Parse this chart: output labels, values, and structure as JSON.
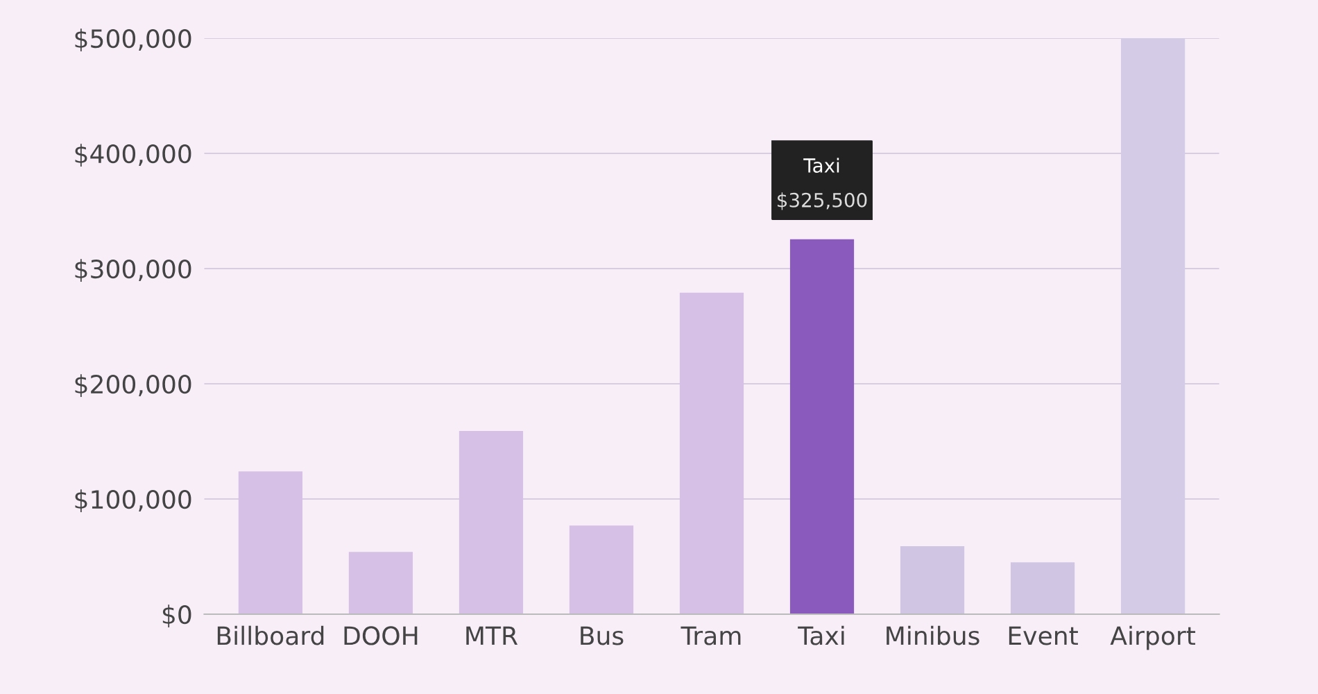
{
  "chart_data": {
    "type": "bar",
    "categories": [
      "Billboard",
      "DOOH",
      "MTR",
      "Bus",
      "Tram",
      "Taxi",
      "Minibus",
      "Event",
      "Airport"
    ],
    "values": [
      124000,
      54000,
      159000,
      77000,
      279000,
      325500,
      59000,
      45000,
      500000
    ],
    "colors": [
      "#d6c0e6",
      "#d6c0e6",
      "#d6c0e6",
      "#d6c0e6",
      "#d6c0e6",
      "#8a5abd",
      "#d0c6e4",
      "#d0c6e4",
      "#d4cbe6"
    ],
    "value_labels": [
      null,
      null,
      null,
      null,
      null,
      "$325,500",
      null,
      null,
      null
    ],
    "annotations": [
      "Taxi"
    ],
    "ylim": [
      0,
      500000
    ],
    "yticks": [
      {
        "value": 0,
        "label": "$0"
      },
      {
        "value": 100000,
        "label": "$100,000"
      },
      {
        "value": 200000,
        "label": "$200,000"
      },
      {
        "value": 300000,
        "label": "$300,000"
      },
      {
        "value": 400000,
        "label": "$400,000"
      },
      {
        "value": 500000,
        "label": "$500,000"
      }
    ],
    "grid": "y"
  }
}
